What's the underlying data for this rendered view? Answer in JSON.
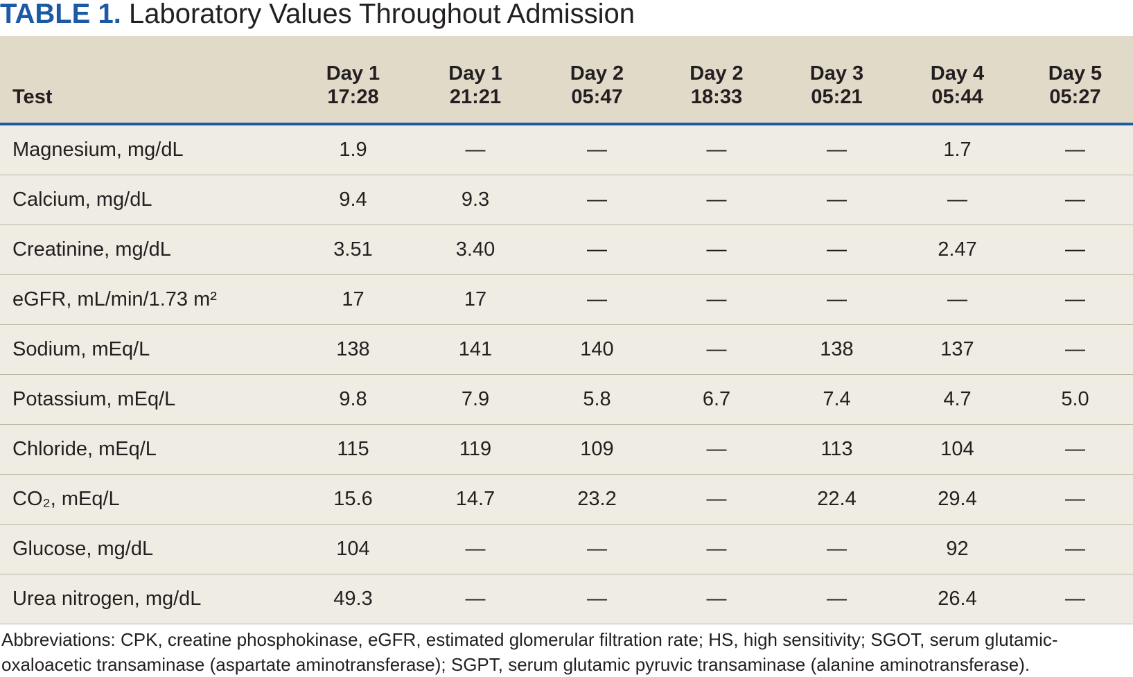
{
  "title": {
    "label": "TABLE 1.",
    "text": "Laboratory Values Throughout Admission"
  },
  "table": {
    "header": {
      "test": "Test",
      "columns": [
        {
          "day": "Day 1",
          "time": "17:28"
        },
        {
          "day": "Day 1",
          "time": "21:21"
        },
        {
          "day": "Day 2",
          "time": "05:47"
        },
        {
          "day": "Day 2",
          "time": "18:33"
        },
        {
          "day": "Day 3",
          "time": "05:21"
        },
        {
          "day": "Day 4",
          "time": "05:44"
        },
        {
          "day": "Day 5",
          "time": "05:27"
        }
      ]
    },
    "rows": [
      {
        "test": "Magnesium, mg/dL",
        "cells": [
          "1.9",
          "—",
          "—",
          "—",
          "—",
          "1.7",
          "—"
        ]
      },
      {
        "test": "Calcium, mg/dL",
        "cells": [
          "9.4",
          "9.3",
          "—",
          "—",
          "—",
          "—",
          "—"
        ]
      },
      {
        "test": "Creatinine, mg/dL",
        "cells": [
          "3.51",
          "3.40",
          "—",
          "—",
          "—",
          "2.47",
          "—"
        ]
      },
      {
        "test": "eGFR, mL/min/1.73 m²",
        "cells": [
          "17",
          "17",
          "—",
          "—",
          "—",
          "—",
          "—"
        ]
      },
      {
        "test": "Sodium, mEq/L",
        "cells": [
          "138",
          "141",
          "140",
          "—",
          "138",
          "137",
          "—"
        ]
      },
      {
        "test": "Potassium, mEq/L",
        "cells": [
          "9.8",
          "7.9",
          "5.8",
          "6.7",
          "7.4",
          "4.7",
          "5.0"
        ]
      },
      {
        "test": "Chloride, mEq/L",
        "cells": [
          "115",
          "119",
          "109",
          "—",
          "113",
          "104",
          "—"
        ]
      },
      {
        "test": "CO₂, mEq/L",
        "cells": [
          "15.6",
          "14.7",
          "23.2",
          "—",
          "22.4",
          "29.4",
          "—"
        ]
      },
      {
        "test": "Glucose, mg/dL",
        "cells": [
          "104",
          "—",
          "—",
          "—",
          "—",
          "92",
          "—"
        ]
      },
      {
        "test": "Urea nitrogen, mg/dL",
        "cells": [
          "49.3",
          "—",
          "—",
          "—",
          "—",
          "26.4",
          "—"
        ]
      }
    ]
  },
  "footnote": "Abbreviations: CPK, creatine phosphokinase, eGFR, estimated glomerular filtration rate; HS, high sensitivity; SGOT, serum glutamic-oxaloacetic transaminase (aspartate aminotransferase); SGPT, serum glutamic pyruvic transaminase (alanine aminotransferase)."
}
